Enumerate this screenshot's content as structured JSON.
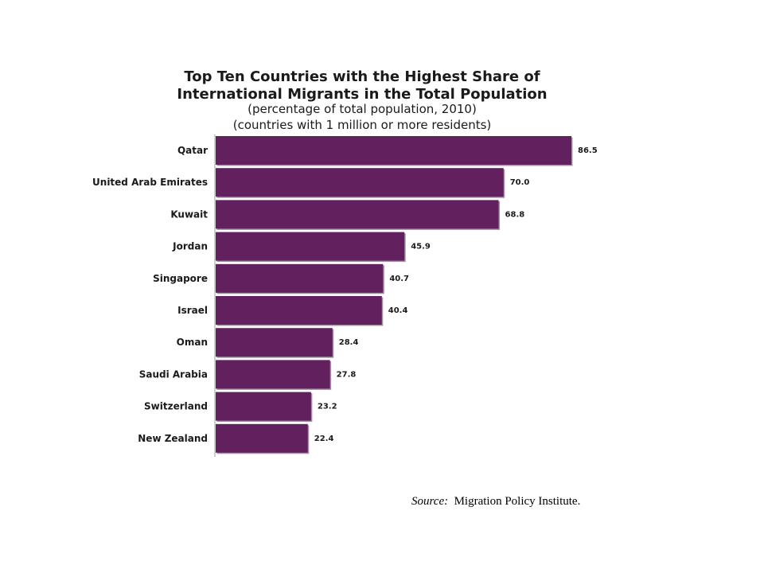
{
  "chart_data": {
    "type": "bar",
    "orientation": "horizontal",
    "title_line1": "Top Ten Countries with the Highest Share of",
    "title_line2": "International Migrants in the Total Population",
    "subtitle_line1": "(percentage of total population, 2010)",
    "subtitle_line2": "(countries with 1 million or more residents)",
    "categories": [
      "Qatar",
      "United Arab Emirates",
      "Kuwait",
      "Jordan",
      "Singapore",
      "Israel",
      "Oman",
      "Saudi Arabia",
      "Switzerland",
      "New Zealand"
    ],
    "values": [
      86.5,
      70.0,
      68.8,
      45.9,
      40.7,
      40.4,
      28.4,
      27.8,
      23.2,
      22.4
    ],
    "value_labels": [
      "86.5",
      "70.0",
      "68.8",
      "45.9",
      "40.7",
      "40.4",
      "28.4",
      "27.8",
      "23.2",
      "22.4"
    ],
    "xlim": [
      0,
      86.5
    ],
    "bar_color": "#62205f",
    "grid": false,
    "legend": "none"
  },
  "source": {
    "label": "Source:",
    "text": "Migration Policy Institute."
  }
}
